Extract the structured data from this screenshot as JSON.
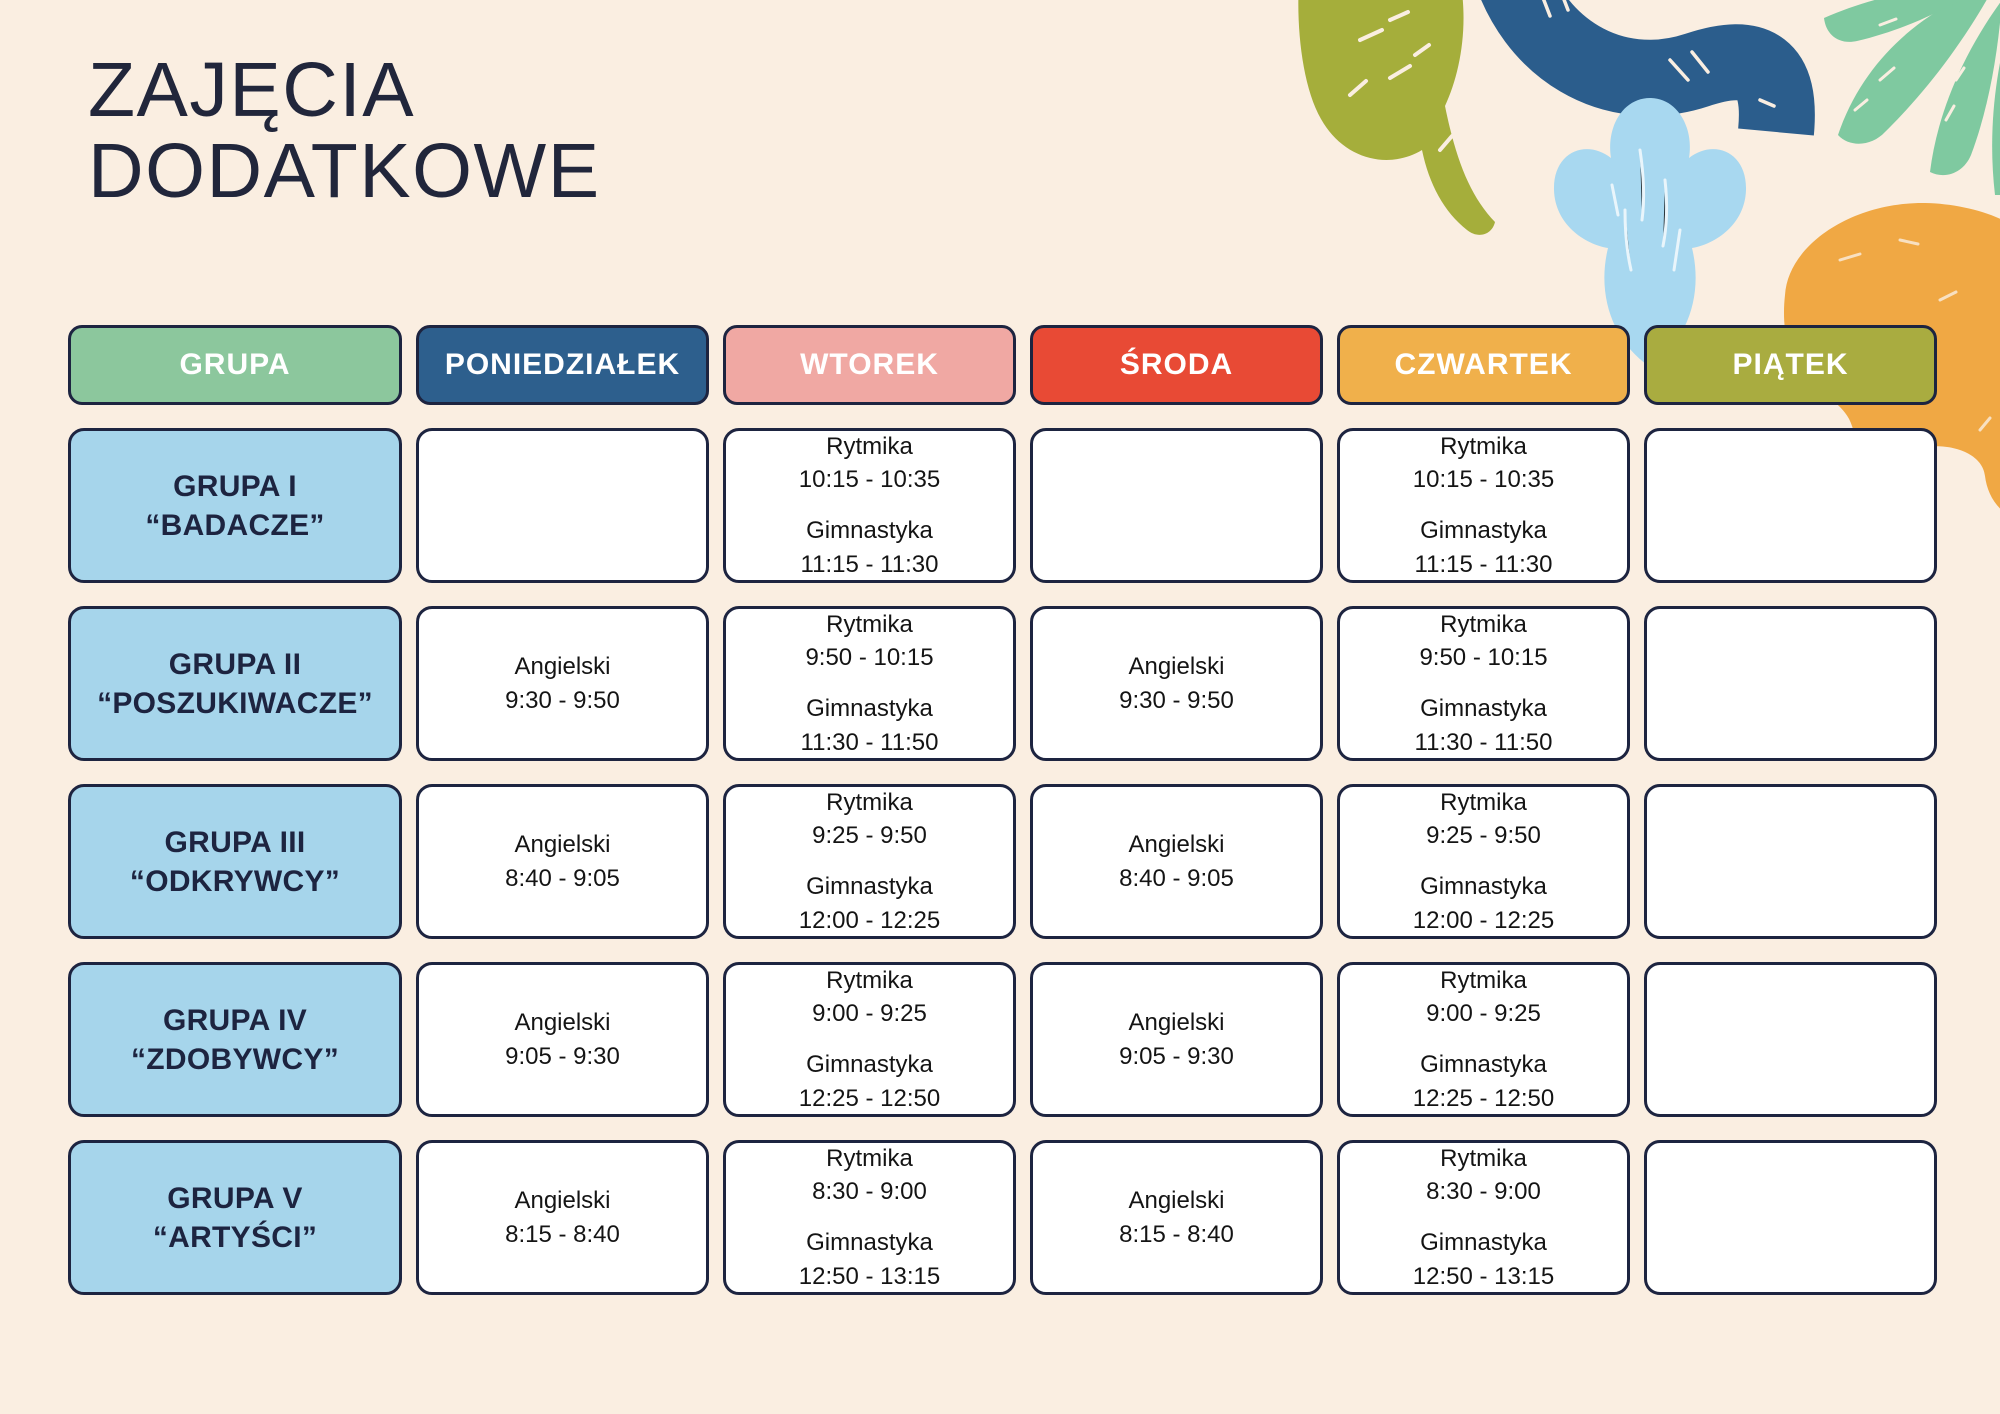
{
  "title": {
    "line1": "ZAJĘCIA",
    "line2": "DODATKOWE"
  },
  "colors": {
    "background": "#FAEEE1",
    "border": "#1D2440",
    "group_cell_fill": "#A6D5EB",
    "header_text": "#FFFFFF",
    "decor": {
      "olive_leaf": "#A5AE3B",
      "navy_wave": "#2B5D8C",
      "light_blue_plant": "#A8D8F0",
      "teal_palm": "#7FC9A0",
      "orange_blob": "#F0A844"
    }
  },
  "table": {
    "headers": [
      {
        "id": "grupa",
        "label": "GRUPA",
        "color": "#8CC79D"
      },
      {
        "id": "poniedzialek",
        "label": "PONIEDZIAŁEK",
        "color": "#2D5F8D"
      },
      {
        "id": "wtorek",
        "label": "WTOREK",
        "color": "#F0A8A3"
      },
      {
        "id": "sroda",
        "label": "ŚRODA",
        "color": "#E84A35"
      },
      {
        "id": "czwartek",
        "label": "CZWARTEK",
        "color": "#F0B04B"
      },
      {
        "id": "piatek",
        "label": "PIĄTEK",
        "color": "#A9AC40"
      }
    ],
    "rows": [
      {
        "group_line1": "GRUPA I",
        "group_line2": "“BADACZE”",
        "days": [
          {
            "entries": []
          },
          {
            "entries": [
              {
                "activity": "Rytmika",
                "time": "10:15 - 10:35"
              },
              {
                "activity": "Gimnastyka",
                "time": "11:15 - 11:30"
              }
            ]
          },
          {
            "entries": []
          },
          {
            "entries": [
              {
                "activity": "Rytmika",
                "time": "10:15 - 10:35"
              },
              {
                "activity": "Gimnastyka",
                "time": "11:15 - 11:30"
              }
            ]
          },
          {
            "entries": []
          }
        ]
      },
      {
        "group_line1": "GRUPA II",
        "group_line2": "“POSZUKIWACZE”",
        "days": [
          {
            "entries": [
              {
                "activity": "Angielski",
                "time": "9:30 - 9:50"
              }
            ]
          },
          {
            "entries": [
              {
                "activity": "Rytmika",
                "time": "9:50 - 10:15"
              },
              {
                "activity": "Gimnastyka",
                "time": "11:30 - 11:50"
              }
            ]
          },
          {
            "entries": [
              {
                "activity": "Angielski",
                "time": "9:30 - 9:50"
              }
            ]
          },
          {
            "entries": [
              {
                "activity": "Rytmika",
                "time": "9:50 - 10:15"
              },
              {
                "activity": "Gimnastyka",
                "time": "11:30 - 11:50"
              }
            ]
          },
          {
            "entries": []
          }
        ]
      },
      {
        "group_line1": "GRUPA III",
        "group_line2": "“ODKRYWCY”",
        "days": [
          {
            "entries": [
              {
                "activity": "Angielski",
                "time": "8:40 - 9:05"
              }
            ]
          },
          {
            "entries": [
              {
                "activity": "Rytmika",
                "time": "9:25 - 9:50"
              },
              {
                "activity": "Gimnastyka",
                "time": "12:00 - 12:25"
              }
            ]
          },
          {
            "entries": [
              {
                "activity": "Angielski",
                "time": "8:40 - 9:05"
              }
            ]
          },
          {
            "entries": [
              {
                "activity": "Rytmika",
                "time": "9:25 - 9:50"
              },
              {
                "activity": "Gimnastyka",
                "time": "12:00 - 12:25"
              }
            ]
          },
          {
            "entries": []
          }
        ]
      },
      {
        "group_line1": "GRUPA IV",
        "group_line2": "“ZDOBYWCY”",
        "days": [
          {
            "entries": [
              {
                "activity": "Angielski",
                "time": "9:05 - 9:30"
              }
            ]
          },
          {
            "entries": [
              {
                "activity": "Rytmika",
                "time": "9:00 - 9:25"
              },
              {
                "activity": "Gimnastyka",
                "time": "12:25 - 12:50"
              }
            ]
          },
          {
            "entries": [
              {
                "activity": "Angielski",
                "time": "9:05 - 9:30"
              }
            ]
          },
          {
            "entries": [
              {
                "activity": "Rytmika",
                "time": "9:00 - 9:25"
              },
              {
                "activity": "Gimnastyka",
                "time": "12:25 - 12:50"
              }
            ]
          },
          {
            "entries": []
          }
        ]
      },
      {
        "group_line1": "GRUPA V",
        "group_line2": "“ARTYŚCI”",
        "days": [
          {
            "entries": [
              {
                "activity": "Angielski",
                "time": "8:15 - 8:40"
              }
            ]
          },
          {
            "entries": [
              {
                "activity": "Rytmika",
                "time": "8:30 - 9:00"
              },
              {
                "activity": "Gimnastyka",
                "time": "12:50 - 13:15"
              }
            ]
          },
          {
            "entries": [
              {
                "activity": "Angielski",
                "time": "8:15 - 8:40"
              }
            ]
          },
          {
            "entries": [
              {
                "activity": "Rytmika",
                "time": "8:30 - 9:00"
              },
              {
                "activity": "Gimnastyka",
                "time": "12:50 - 13:15"
              }
            ]
          },
          {
            "entries": []
          }
        ]
      }
    ]
  }
}
